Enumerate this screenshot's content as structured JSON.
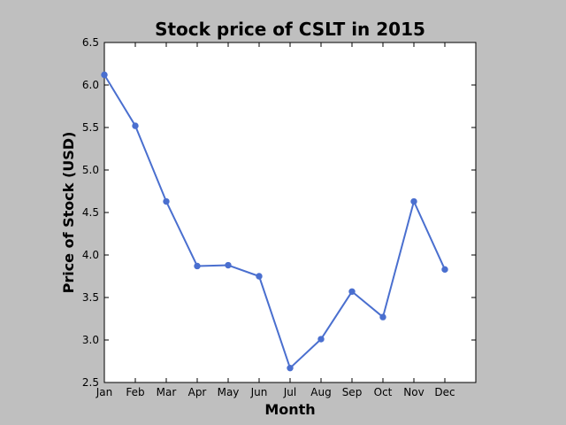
{
  "chart_data": {
    "type": "line",
    "title": "Stock price of CSLT in 2015",
    "xlabel": "Month",
    "ylabel": "Price of Stock (USD)",
    "categories": [
      "Jan",
      "Feb",
      "Mar",
      "Apr",
      "May",
      "Jun",
      "Jul",
      "Aug",
      "Sep",
      "Oct",
      "Nov",
      "Dec"
    ],
    "series": [
      {
        "values": [
          6.12,
          5.52,
          4.63,
          3.87,
          3.88,
          3.75,
          2.67,
          3.01,
          3.57,
          3.27,
          4.63,
          3.83
        ],
        "color": "#4a6fcf"
      }
    ],
    "ylim": [
      2.5,
      6.5
    ],
    "yticks": [
      "2.5",
      "3.0",
      "3.5",
      "4.0",
      "4.5",
      "5.0",
      "5.5",
      "6.0",
      "6.5"
    ],
    "grid": false,
    "legend": "none"
  }
}
